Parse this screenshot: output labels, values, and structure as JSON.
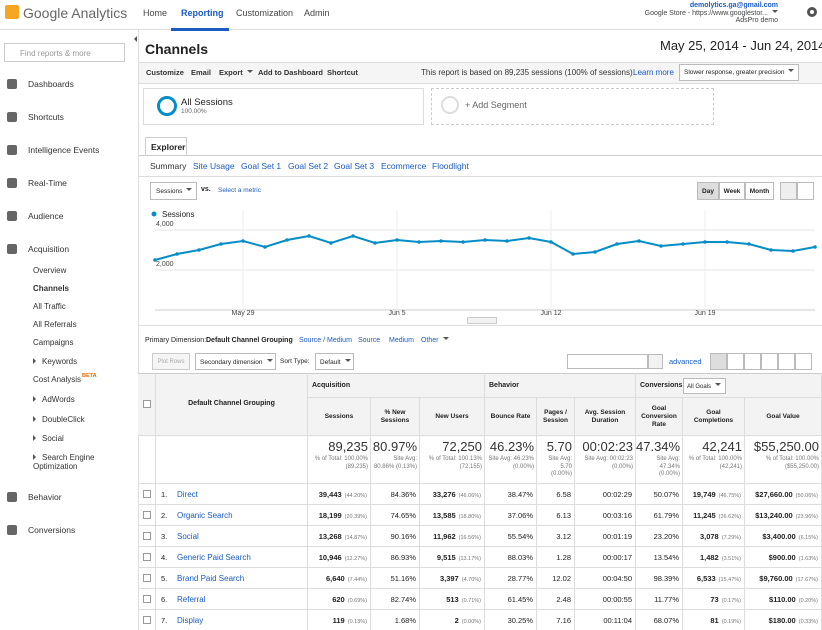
{
  "header": {
    "logo": "Google Analytics",
    "nav": [
      "Home",
      "Reporting",
      "Customization",
      "Admin"
    ],
    "account": {
      "email": "demolytics.ga@gmail.com",
      "property": "Google Store - https://www.googlestor...",
      "view": "AdsPro demo"
    }
  },
  "sidebar": {
    "search_placeholder": "Find reports & more",
    "items": [
      "Dashboards",
      "Shortcuts",
      "Intelligence Events",
      "Real-Time",
      "Audience",
      "Acquisition"
    ],
    "acquisition_items": [
      "Overview",
      "Channels",
      "All Traffic",
      "All Referrals",
      "Campaigns",
      "Keywords",
      "Cost Analysis",
      "AdWords",
      "DoubleClick",
      "Social",
      "Search Engine Optimization"
    ],
    "beta": "BETA",
    "bottom_items": [
      "Behavior",
      "Conversions"
    ]
  },
  "report": {
    "title": "Channels",
    "date_range": "May 25, 2014 - Jun 24, 2014",
    "toolbar": [
      "Customize",
      "Email",
      "Export",
      "Add to Dashboard",
      "Shortcut"
    ],
    "sampling_note": "This report is based on 89,235 sessions (100% of sessions).",
    "learn_more": "Learn more",
    "precision": "Slower response, greater precision"
  },
  "segments": {
    "name": "All Sessions",
    "percent": "100.00%",
    "add": "+ Add Segment"
  },
  "tabs": {
    "explorer": "Explorer",
    "subtabs": [
      "Summary",
      "Site Usage",
      "Goal Set 1",
      "Goal Set 2",
      "Goal Set 3",
      "Ecommerce",
      "Floodlight"
    ]
  },
  "chart_controls": {
    "metric": "Sessions",
    "vs": "vs.",
    "select_metric": "Select a metric",
    "intervals": [
      "Day",
      "Week",
      "Month"
    ]
  },
  "chart_data": {
    "type": "line",
    "categories": [
      null,
      null,
      null,
      null,
      "May 29",
      null,
      null,
      null,
      null,
      null,
      null,
      "Jun 5",
      null,
      null,
      null,
      null,
      null,
      null,
      "Jun 12",
      null,
      null,
      null,
      null,
      null,
      null,
      "Jun 19",
      null,
      null,
      null,
      null,
      null
    ],
    "series": [
      {
        "name": "Sessions",
        "color": "#058dc7",
        "values": [
          2500,
          2800,
          3000,
          3300,
          3450,
          3150,
          3500,
          3700,
          3350,
          3700,
          3350,
          3500,
          3400,
          3450,
          3400,
          3500,
          3450,
          3600,
          3400,
          2800,
          2900,
          3300,
          3450,
          3200,
          3300,
          3400,
          3400,
          3300,
          3000,
          2950,
          3150
        ]
      }
    ],
    "ylim": [
      0,
      5000
    ],
    "yticks": [
      {
        "value": 2000,
        "label": "2,000"
      },
      {
        "value": 4000,
        "label": "4,000"
      }
    ],
    "grid": true
  },
  "dimensions": {
    "label": "Primary Dimension:",
    "options": [
      "Default Channel Grouping",
      "Source / Medium",
      "Source",
      "Medium",
      "Other"
    ]
  },
  "table_controls": {
    "plot_rows": "Plot Rows",
    "secondary": "Secondary dimension",
    "sort_label": "Sort Type:",
    "sort": "Default",
    "advanced": "advanced"
  },
  "table": {
    "groups": [
      "Acquisition",
      "Behavior",
      "Conversions"
    ],
    "goal_select": "All Goals",
    "columns": [
      "Default Channel Grouping",
      "Sessions",
      "% New Sessions",
      "New Users",
      "Bounce Rate",
      "Pages / Session",
      "Avg. Session Duration",
      "Goal Conversion Rate",
      "Goal Completions",
      "Goal Value"
    ],
    "totals": [
      {
        "value": "89,235",
        "note": "% of Total: 100.00% (89,235)"
      },
      {
        "value": "80.97%",
        "note": "Site Avg: 80.86% (0.13%)"
      },
      {
        "value": "72,250",
        "note": "% of Total: 100.13% (72,155)"
      },
      {
        "value": "46.23%",
        "note": "Site Avg: 46.23% (0.00%)"
      },
      {
        "value": "5.70",
        "note": "Site Avg: 5.70 (0.00%)"
      },
      {
        "value": "00:02:23",
        "note": "Site Avg: 00:02:23 (0.00%)"
      },
      {
        "value": "47.34%",
        "note": "Site Avg: 47.34% (0.00%)"
      },
      {
        "value": "42,241",
        "note": "% of Total: 100.00% (42,241)"
      },
      {
        "value": "$55,250.00",
        "note": "% of Total: 100.00% ($55,250.00)"
      }
    ],
    "rows": [
      {
        "rank": "1.",
        "channel": "Direct",
        "cells": [
          {
            "value": "39,443",
            "share": "(44.20%)"
          },
          "84.36%",
          {
            "value": "33,276",
            "share": "(46.06%)"
          },
          "38.47%",
          "6.58",
          "00:02:29",
          "50.07%",
          {
            "value": "19,749",
            "share": "(46.75%)"
          },
          {
            "value": "$27,660.00",
            "share": "(50.06%)"
          }
        ]
      },
      {
        "rank": "2.",
        "channel": "Organic Search",
        "cells": [
          {
            "value": "18,199",
            "share": "(20.39%)"
          },
          "74.65%",
          {
            "value": "13,585",
            "share": "(18.80%)"
          },
          "37.06%",
          "6.13",
          "00:03:16",
          "61.79%",
          {
            "value": "11,245",
            "share": "(26.62%)"
          },
          {
            "value": "$13,240.00",
            "share": "(23.96%)"
          }
        ]
      },
      {
        "rank": "3.",
        "channel": "Social",
        "cells": [
          {
            "value": "13,268",
            "share": "(14.87%)"
          },
          "90.16%",
          {
            "value": "11,962",
            "share": "(16.56%)"
          },
          "55.54%",
          "3.12",
          "00:01:19",
          "23.20%",
          {
            "value": "3,078",
            "share": "(7.29%)"
          },
          {
            "value": "$3,400.00",
            "share": "(6.15%)"
          }
        ]
      },
      {
        "rank": "4.",
        "channel": "Generic Paid Search",
        "cells": [
          {
            "value": "10,946",
            "share": "(12.27%)"
          },
          "86.93%",
          {
            "value": "9,515",
            "share": "(13.17%)"
          },
          "88.03%",
          "1.28",
          "00:00:17",
          "13.54%",
          {
            "value": "1,482",
            "share": "(3.51%)"
          },
          {
            "value": "$900.00",
            "share": "(1.63%)"
          }
        ]
      },
      {
        "rank": "5.",
        "channel": "Brand Paid Search",
        "cells": [
          {
            "value": "6,640",
            "share": "(7.44%)"
          },
          "51.16%",
          {
            "value": "3,397",
            "share": "(4.70%)"
          },
          "28.77%",
          "12.02",
          "00:04:50",
          "98.39%",
          {
            "value": "6,533",
            "share": "(15.47%)"
          },
          {
            "value": "$9,760.00",
            "share": "(17.67%)"
          }
        ]
      },
      {
        "rank": "6.",
        "channel": "Referral",
        "cells": [
          {
            "value": "620",
            "share": "(0.69%)"
          },
          "82.74%",
          {
            "value": "513",
            "share": "(0.71%)"
          },
          "61.45%",
          "2.48",
          "00:00:55",
          "11.77%",
          {
            "value": "73",
            "share": "(0.17%)"
          },
          {
            "value": "$110.00",
            "share": "(0.20%)"
          }
        ]
      },
      {
        "rank": "7.",
        "channel": "Display",
        "cells": [
          {
            "value": "119",
            "share": "(0.13%)"
          },
          "1.68%",
          {
            "value": "2",
            "share": "(0.00%)"
          },
          "30.25%",
          "7.16",
          "00:11:04",
          "68.07%",
          {
            "value": "81",
            "share": "(0.19%)"
          },
          {
            "value": "$180.00",
            "share": "(0.33%)"
          }
        ]
      }
    ]
  }
}
